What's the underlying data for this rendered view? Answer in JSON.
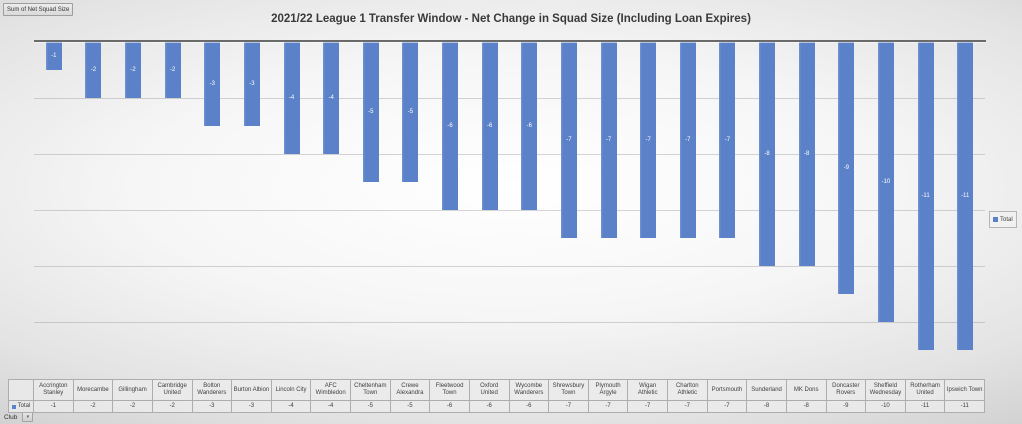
{
  "pivot_chart": {
    "value_field_button": "Sum of Net Squad Size",
    "axis_field_button": "Club",
    "legend_label": "Total",
    "table_row_label": "Total"
  },
  "chart_data": {
    "type": "bar",
    "title": "2021/22 League 1 Transfer Window - Net Change in Squad Size (Including Loan Expires)",
    "categories": [
      "Accrington Stanley",
      "Morecambe",
      "Gillingham",
      "Cambridge United",
      "Bolton Wanderers",
      "Burton Albion",
      "Lincoln City",
      "AFC Wimbledon",
      "Cheltenham Town",
      "Crewe Alexandra",
      "Fleetwood Town",
      "Oxford United",
      "Wycombe Wanderers",
      "Shrewsbury Town",
      "Plymouth Argyle",
      "Wigan Athletic",
      "Charlton Athletic",
      "Portsmouth",
      "Sunderland",
      "MK Dons",
      "Doncaster Rovers",
      "Sheffield Wednesday",
      "Rotherham United",
      "Ipswich Town"
    ],
    "series": [
      {
        "name": "Total",
        "values": [
          -1,
          -2,
          -2,
          -2,
          -3,
          -3,
          -4,
          -4,
          -5,
          -5,
          -6,
          -6,
          -6,
          -7,
          -7,
          -7,
          -7,
          -7,
          -8,
          -8,
          -9,
          -10,
          -11,
          -11
        ]
      }
    ],
    "xlabel": "Club",
    "ylabel": "",
    "ylim": [
      -12,
      0
    ],
    "gridline_interval": 2,
    "grid": true,
    "bar_color": "#5b82c8",
    "data_labels": "center",
    "legend_position": "right"
  }
}
